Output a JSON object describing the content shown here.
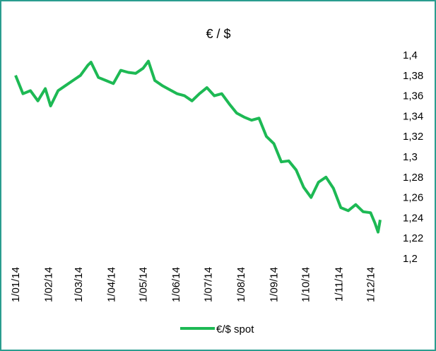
{
  "chart_data": {
    "type": "line",
    "title": "€ / $",
    "x": [
      "2014-01-01",
      "2014-01-08",
      "2014-01-15",
      "2014-01-22",
      "2014-01-29",
      "2014-02-03",
      "2014-02-10",
      "2014-02-17",
      "2014-02-24",
      "2014-03-03",
      "2014-03-10",
      "2014-03-13",
      "2014-03-20",
      "2014-03-27",
      "2014-04-03",
      "2014-04-10",
      "2014-04-17",
      "2014-04-24",
      "2014-05-01",
      "2014-05-06",
      "2014-05-12",
      "2014-05-19",
      "2014-05-26",
      "2014-06-02",
      "2014-06-09",
      "2014-06-16",
      "2014-06-23",
      "2014-06-30",
      "2014-07-07",
      "2014-07-14",
      "2014-07-21",
      "2014-07-28",
      "2014-08-04",
      "2014-08-11",
      "2014-08-18",
      "2014-08-25",
      "2014-09-01",
      "2014-09-08",
      "2014-09-15",
      "2014-09-22",
      "2014-09-29",
      "2014-10-06",
      "2014-10-13",
      "2014-10-20",
      "2014-10-27",
      "2014-11-03",
      "2014-11-10",
      "2014-11-17",
      "2014-11-24",
      "2014-12-01",
      "2014-12-05",
      "2014-12-08",
      "2014-12-10"
    ],
    "series": [
      {
        "name": "€/$ spot",
        "color": "#1db954",
        "values": [
          1.38,
          1.362,
          1.365,
          1.355,
          1.367,
          1.35,
          1.365,
          1.37,
          1.375,
          1.38,
          1.39,
          1.393,
          1.378,
          1.375,
          1.372,
          1.385,
          1.383,
          1.382,
          1.387,
          1.394,
          1.375,
          1.37,
          1.366,
          1.362,
          1.36,
          1.355,
          1.362,
          1.368,
          1.36,
          1.362,
          1.352,
          1.343,
          1.339,
          1.336,
          1.338,
          1.32,
          1.313,
          1.295,
          1.296,
          1.287,
          1.27,
          1.26,
          1.275,
          1.28,
          1.269,
          1.25,
          1.247,
          1.253,
          1.246,
          1.245,
          1.235,
          1.226,
          1.238
        ]
      }
    ],
    "xlim": [
      "2014-01-01",
      "2014-12-16"
    ],
    "xticks": [
      {
        "value": "2014-01-01",
        "label": "1/01/14"
      },
      {
        "value": "2014-02-01",
        "label": "1/02/14"
      },
      {
        "value": "2014-03-01",
        "label": "1/03/14"
      },
      {
        "value": "2014-04-01",
        "label": "1/04/14"
      },
      {
        "value": "2014-05-01",
        "label": "1/05/14"
      },
      {
        "value": "2014-06-01",
        "label": "1/06/14"
      },
      {
        "value": "2014-07-01",
        "label": "1/07/14"
      },
      {
        "value": "2014-08-01",
        "label": "1/08/14"
      },
      {
        "value": "2014-09-01",
        "label": "1/09/14"
      },
      {
        "value": "2014-10-01",
        "label": "1/10/14"
      },
      {
        "value": "2014-11-01",
        "label": "1/11/14"
      },
      {
        "value": "2014-12-01",
        "label": "1/12/14"
      }
    ],
    "ylim": [
      1.2,
      1.4
    ],
    "yticks": [
      {
        "value": 1.2,
        "label": "1,2"
      },
      {
        "value": 1.22,
        "label": "1,22"
      },
      {
        "value": 1.24,
        "label": "1,24"
      },
      {
        "value": 1.26,
        "label": "1,26"
      },
      {
        "value": 1.28,
        "label": "1,28"
      },
      {
        "value": 1.3,
        "label": "1,3"
      },
      {
        "value": 1.32,
        "label": "1,32"
      },
      {
        "value": 1.34,
        "label": "1,34"
      },
      {
        "value": 1.36,
        "label": "1,36"
      },
      {
        "value": 1.38,
        "label": "1,38"
      },
      {
        "value": 1.4,
        "label": "1,4"
      }
    ],
    "legend": "bottom"
  }
}
